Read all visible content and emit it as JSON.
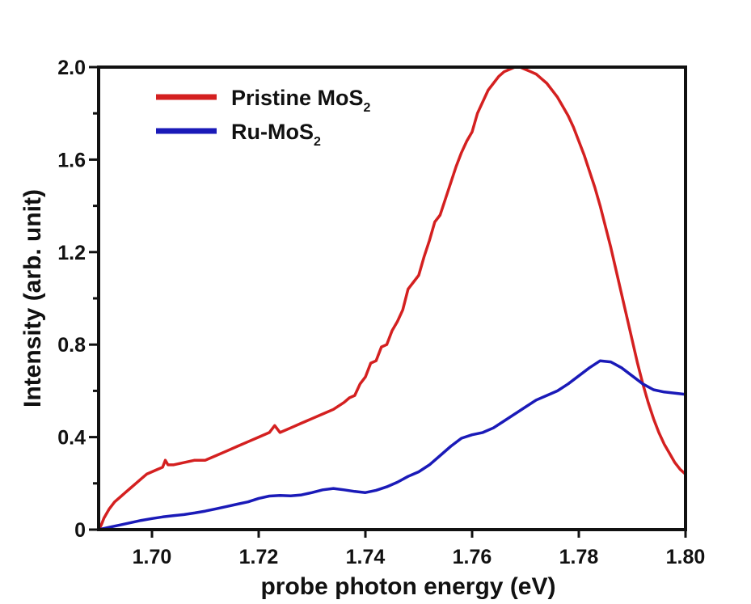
{
  "chart_data": {
    "type": "line",
    "title": "",
    "xlabel": "probe photon energy (eV)",
    "ylabel": "Intensity (arb. unit)",
    "xlim": [
      1.69,
      1.8
    ],
    "ylim": [
      0,
      2.0
    ],
    "x_ticks": [
      1.7,
      1.72,
      1.74,
      1.76,
      1.78,
      1.8
    ],
    "x_tick_labels": [
      "1.70",
      "1.72",
      "1.74",
      "1.76",
      "1.78",
      "1.80"
    ],
    "y_ticks": [
      0,
      0.4,
      0.8,
      1.2,
      1.6,
      2.0
    ],
    "y_tick_labels": [
      "0",
      "0.4",
      "0.8",
      "1.2",
      "1.6",
      "2.0"
    ],
    "grid": false,
    "legend_position": "top-left",
    "series": [
      {
        "name": "Pristine MoS",
        "name_subscript": "2",
        "color": "#d42020",
        "x": [
          1.69,
          1.6905,
          1.691,
          1.692,
          1.693,
          1.694,
          1.695,
          1.696,
          1.697,
          1.698,
          1.699,
          1.7,
          1.701,
          1.702,
          1.7025,
          1.703,
          1.704,
          1.706,
          1.708,
          1.71,
          1.712,
          1.714,
          1.716,
          1.718,
          1.72,
          1.722,
          1.723,
          1.724,
          1.726,
          1.728,
          1.73,
          1.732,
          1.734,
          1.736,
          1.737,
          1.738,
          1.739,
          1.74,
          1.741,
          1.742,
          1.743,
          1.744,
          1.745,
          1.746,
          1.747,
          1.748,
          1.749,
          1.75,
          1.751,
          1.752,
          1.753,
          1.754,
          1.755,
          1.756,
          1.757,
          1.758,
          1.759,
          1.76,
          1.761,
          1.762,
          1.763,
          1.764,
          1.765,
          1.766,
          1.767,
          1.768,
          1.769,
          1.77,
          1.771,
          1.772,
          1.773,
          1.774,
          1.775,
          1.776,
          1.777,
          1.778,
          1.779,
          1.78,
          1.781,
          1.782,
          1.783,
          1.784,
          1.785,
          1.786,
          1.787,
          1.788,
          1.789,
          1.79,
          1.791,
          1.792,
          1.793,
          1.794,
          1.795,
          1.796,
          1.797,
          1.798,
          1.799,
          1.8
        ],
        "values": [
          0.0,
          0.02,
          0.05,
          0.09,
          0.12,
          0.14,
          0.16,
          0.18,
          0.2,
          0.22,
          0.24,
          0.25,
          0.26,
          0.27,
          0.3,
          0.28,
          0.28,
          0.29,
          0.3,
          0.3,
          0.32,
          0.34,
          0.36,
          0.38,
          0.4,
          0.42,
          0.45,
          0.42,
          0.44,
          0.46,
          0.48,
          0.5,
          0.52,
          0.55,
          0.57,
          0.58,
          0.63,
          0.66,
          0.72,
          0.73,
          0.79,
          0.8,
          0.86,
          0.9,
          0.95,
          1.04,
          1.07,
          1.1,
          1.18,
          1.25,
          1.33,
          1.36,
          1.43,
          1.5,
          1.57,
          1.63,
          1.68,
          1.72,
          1.8,
          1.85,
          1.9,
          1.93,
          1.96,
          1.98,
          1.99,
          2.0,
          2.0,
          1.99,
          1.98,
          1.97,
          1.95,
          1.93,
          1.9,
          1.87,
          1.83,
          1.79,
          1.74,
          1.68,
          1.62,
          1.55,
          1.48,
          1.4,
          1.31,
          1.22,
          1.12,
          1.02,
          0.92,
          0.82,
          0.72,
          0.63,
          0.55,
          0.48,
          0.42,
          0.37,
          0.33,
          0.29,
          0.26,
          0.24
        ]
      },
      {
        "name": "Ru-MoS",
        "name_subscript": "2",
        "color": "#1a1ab8",
        "x": [
          1.69,
          1.692,
          1.694,
          1.696,
          1.698,
          1.7,
          1.702,
          1.704,
          1.706,
          1.708,
          1.71,
          1.712,
          1.714,
          1.716,
          1.718,
          1.72,
          1.722,
          1.724,
          1.726,
          1.728,
          1.73,
          1.732,
          1.734,
          1.736,
          1.738,
          1.74,
          1.742,
          1.744,
          1.746,
          1.748,
          1.75,
          1.752,
          1.754,
          1.756,
          1.758,
          1.76,
          1.762,
          1.764,
          1.766,
          1.768,
          1.77,
          1.772,
          1.774,
          1.776,
          1.778,
          1.78,
          1.782,
          1.784,
          1.786,
          1.788,
          1.79,
          1.792,
          1.794,
          1.796,
          1.798,
          1.8
        ],
        "values": [
          0.0,
          0.01,
          0.02,
          0.03,
          0.04,
          0.048,
          0.055,
          0.06,
          0.065,
          0.072,
          0.08,
          0.09,
          0.1,
          0.11,
          0.12,
          0.135,
          0.145,
          0.148,
          0.146,
          0.15,
          0.16,
          0.172,
          0.178,
          0.172,
          0.165,
          0.16,
          0.17,
          0.185,
          0.205,
          0.23,
          0.25,
          0.28,
          0.32,
          0.36,
          0.395,
          0.41,
          0.42,
          0.44,
          0.47,
          0.5,
          0.53,
          0.56,
          0.58,
          0.6,
          0.63,
          0.665,
          0.7,
          0.73,
          0.725,
          0.7,
          0.665,
          0.63,
          0.605,
          0.595,
          0.59,
          0.585
        ]
      }
    ]
  }
}
